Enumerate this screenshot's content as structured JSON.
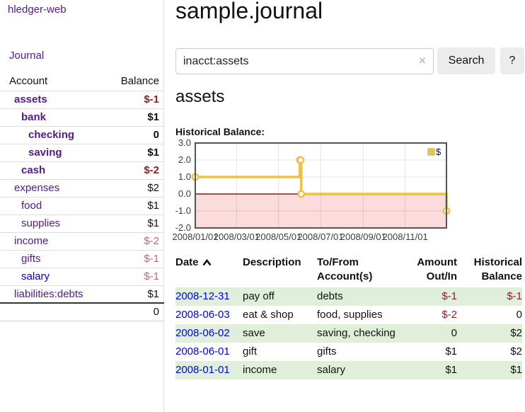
{
  "app": {
    "brand": "hledger-web",
    "nav_journal": "Journal"
  },
  "sidebar": {
    "headers": {
      "account": "Account",
      "balance": "Balance"
    },
    "rows": [
      {
        "name": "assets",
        "balance": "$-1"
      },
      {
        "name": "bank",
        "balance": "$1"
      },
      {
        "name": "checking",
        "balance": "0"
      },
      {
        "name": "saving",
        "balance": "$1"
      },
      {
        "name": "cash",
        "balance": "$-2"
      },
      {
        "name": "expenses",
        "balance": "$2"
      },
      {
        "name": "food",
        "balance": "$1"
      },
      {
        "name": "supplies",
        "balance": "$1"
      },
      {
        "name": "income",
        "balance": "$-2"
      },
      {
        "name": "gifts",
        "balance": "$-1"
      },
      {
        "name": "salary",
        "balance": "$-1"
      },
      {
        "name": "liabilities:debts",
        "balance": "$1"
      }
    ],
    "total": "0"
  },
  "header": {
    "title": "sample.journal"
  },
  "search": {
    "value": "inacct:assets",
    "clear_icon": "×",
    "button": "Search",
    "help_button": "?"
  },
  "account_page": {
    "title": "assets",
    "chart_label": "Historical Balance:"
  },
  "chart_data": {
    "type": "line",
    "step": true,
    "title": "Historical Balance:",
    "x_range": [
      "2008-01-01",
      "2008-12-31"
    ],
    "ylim": [
      -2,
      3
    ],
    "y_ticks": [
      "3.0",
      "2.0",
      "1.0",
      "0.0",
      "-1.0",
      "-2.0"
    ],
    "x_ticks": [
      "2008/01/01",
      "2008/03/01",
      "2008/05/01",
      "2008/07/01",
      "2008/09/01",
      "2008/11/01"
    ],
    "series": [
      {
        "name": "$",
        "color": "#edc240",
        "points": [
          [
            "2008-01-01",
            1
          ],
          [
            "2008-06-01",
            2
          ],
          [
            "2008-06-02",
            2
          ],
          [
            "2008-06-03",
            0
          ],
          [
            "2008-12-31",
            -1
          ]
        ]
      }
    ],
    "legend_position": "top-right",
    "grid": true,
    "zero_line_color": "#8b1a1a",
    "negative_region_color": "#fbdbdb"
  },
  "register": {
    "headers": {
      "date": "Date",
      "description": "Description",
      "accounts": "To/From Account(s)",
      "amount": "Amount Out/In",
      "balance": "Historical Balance"
    },
    "rows": [
      {
        "date": "2008-12-31",
        "description": "pay off",
        "accounts": "debts",
        "amount": "$-1",
        "balance": "$-1"
      },
      {
        "date": "2008-06-03",
        "description": "eat & shop",
        "accounts": "food, supplies",
        "amount": "$-2",
        "balance": "0"
      },
      {
        "date": "2008-06-02",
        "description": "save",
        "accounts": "saving, checking",
        "amount": "0",
        "balance": "$2"
      },
      {
        "date": "2008-06-01",
        "description": "gift",
        "accounts": "gifts",
        "amount": "$1",
        "balance": "$2"
      },
      {
        "date": "2008-01-01",
        "description": "income",
        "accounts": "salary",
        "amount": "$1",
        "balance": "$1"
      }
    ]
  }
}
